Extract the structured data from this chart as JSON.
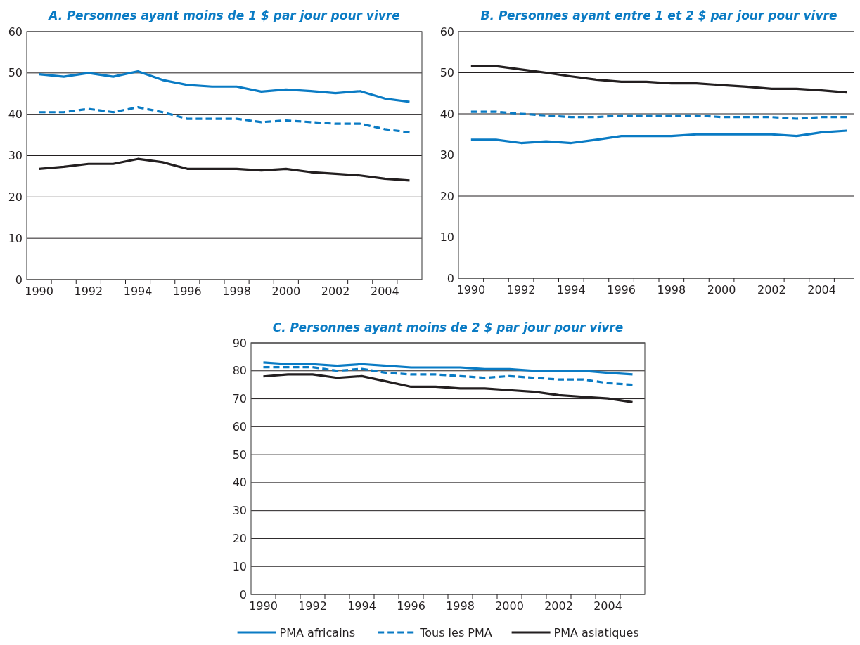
{
  "chart_data": [
    {
      "type": "line",
      "title": "A.  Personnes ayant moins de 1 $ par jour pour vivre",
      "categories": [
        "1990",
        null,
        "1992",
        null,
        "1994",
        null,
        "1996",
        null,
        "1998",
        null,
        "2000",
        null,
        "2002",
        null,
        "2004",
        null
      ],
      "ylim": [
        0,
        60
      ],
      "yticks": [
        0,
        10,
        20,
        30,
        40,
        50,
        60
      ],
      "grid": "y",
      "series": [
        {
          "color": "#0a7bc4",
          "line_style": "solid",
          "values": [
            49.7,
            49.1,
            50.0,
            49.1,
            50.4,
            48.3,
            47.1,
            46.7,
            46.7,
            45.5,
            46.0,
            45.6,
            45.1,
            45.6,
            43.8,
            43.0
          ]
        },
        {
          "color": "#0a7bc4",
          "line_style": "dashed",
          "values": [
            40.5,
            40.5,
            41.3,
            40.5,
            41.7,
            40.5,
            38.9,
            38.9,
            38.9,
            38.1,
            38.5,
            38.1,
            37.7,
            37.7,
            36.4,
            35.6
          ]
        },
        {
          "color": "#231f20",
          "line_style": "solid",
          "values": [
            26.8,
            27.3,
            28.0,
            28.0,
            29.2,
            28.4,
            26.8,
            26.8,
            26.8,
            26.4,
            26.8,
            26.0,
            25.6,
            25.2,
            24.4,
            24.0
          ]
        }
      ]
    },
    {
      "type": "line",
      "title": "B.  Personnes ayant entre 1 et 2 $ par jour pour vivre",
      "categories": [
        "1990",
        null,
        "1992",
        null,
        "1994",
        null,
        "1996",
        null,
        "1998",
        null,
        "2000",
        null,
        "2002",
        null,
        "2004",
        null
      ],
      "ylim": [
        0,
        60
      ],
      "yticks": [
        0,
        10,
        20,
        30,
        40,
        50,
        60
      ],
      "grid": "y",
      "series": [
        {
          "color": "#0a7bc4",
          "line_style": "solid",
          "values": [
            33.7,
            33.7,
            32.9,
            33.3,
            32.9,
            33.7,
            34.6,
            34.6,
            34.6,
            35.0,
            35.0,
            35.0,
            35.0,
            34.6,
            35.5,
            35.9
          ]
        },
        {
          "color": "#0a7bc4",
          "line_style": "dashed",
          "values": [
            40.5,
            40.5,
            40.0,
            39.6,
            39.2,
            39.2,
            39.6,
            39.6,
            39.6,
            39.6,
            39.2,
            39.2,
            39.2,
            38.8,
            39.2,
            39.2
          ]
        },
        {
          "color": "#231f20",
          "line_style": "solid",
          "values": [
            51.6,
            51.6,
            50.8,
            50.0,
            49.1,
            48.3,
            47.8,
            47.8,
            47.4,
            47.4,
            47.0,
            46.6,
            46.1,
            46.1,
            45.7,
            45.2
          ]
        }
      ]
    },
    {
      "type": "line",
      "title": "C.  Personnes ayant moins de 2 $ par jour pour vivre",
      "categories": [
        "1990",
        null,
        "1992",
        null,
        "1994",
        null,
        "1996",
        null,
        "1998",
        null,
        "2000",
        null,
        "2002",
        null,
        "2004",
        null
      ],
      "ylim": [
        0,
        90
      ],
      "yticks": [
        0,
        10,
        20,
        30,
        40,
        50,
        60,
        70,
        80,
        90
      ],
      "grid": "y",
      "legend": "bottom",
      "series": [
        {
          "name": "PMA africains",
          "color": "#0a7bc4",
          "line_style": "solid",
          "values": [
            83.0,
            82.4,
            82.4,
            81.8,
            82.4,
            81.8,
            81.2,
            81.2,
            81.2,
            80.6,
            80.6,
            80.0,
            80.0,
            80.0,
            79.3,
            78.7
          ]
        },
        {
          "name": "Tous les PMA",
          "color": "#0a7bc4",
          "line_style": "dashed",
          "values": [
            81.3,
            81.3,
            81.3,
            80.0,
            80.7,
            79.3,
            78.7,
            78.7,
            78.1,
            77.5,
            78.1,
            77.5,
            76.9,
            76.9,
            75.6,
            75.0
          ]
        },
        {
          "name": "PMA asiatiques",
          "color": "#231f20",
          "line_style": "solid",
          "values": [
            78.0,
            78.7,
            78.7,
            77.5,
            78.1,
            76.2,
            74.3,
            74.3,
            73.7,
            73.7,
            73.1,
            72.5,
            71.3,
            70.7,
            70.1,
            68.8
          ]
        }
      ]
    }
  ]
}
